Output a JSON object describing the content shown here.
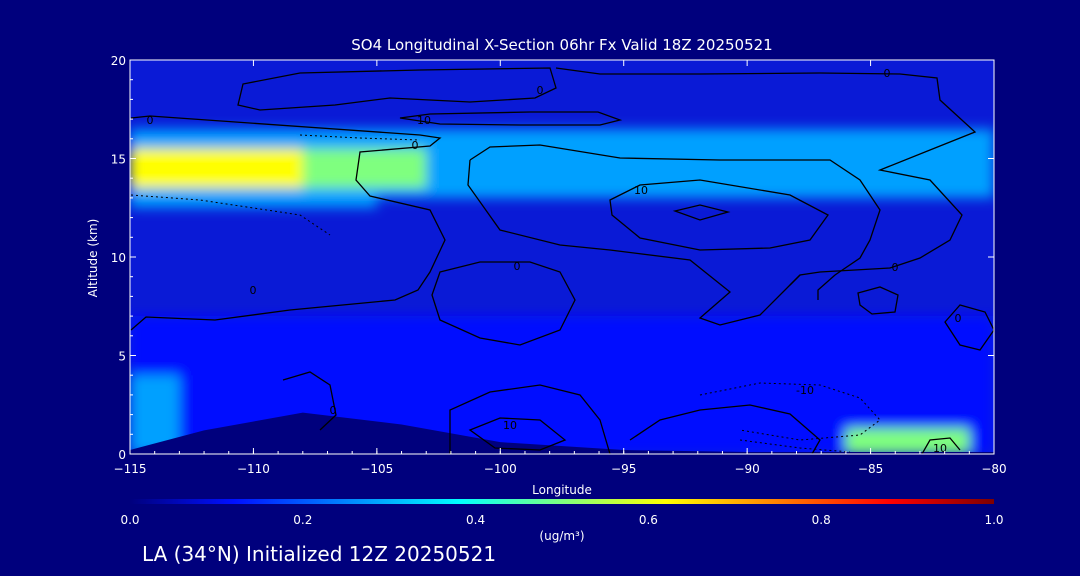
{
  "chart_data": {
    "type": "heatmap",
    "title": "SO4 Longitudinal X-Section 06hr  Fx Valid 18Z 20250521",
    "xlabel": "Longitude",
    "ylabel": "Altitude (km)",
    "xlim": [
      -115,
      -80
    ],
    "ylim": [
      0,
      20
    ],
    "x_ticks": [
      "-115",
      "-110",
      "-105",
      "-100",
      "-95",
      "-90",
      "-85",
      "-80"
    ],
    "y_ticks": [
      "0",
      "5",
      "10",
      "15",
      "20"
    ],
    "colorbar": {
      "label": "(ug/m³)",
      "range": [
        0.0,
        1.0
      ],
      "ticks": [
        "0.0",
        "0.2",
        "0.4",
        "0.6",
        "0.8",
        "1.0"
      ],
      "colors": [
        "#00007d",
        "#0010ff",
        "#00a0ff",
        "#00ffff",
        "#7fff7f",
        "#ffff00",
        "#ff8000",
        "#ff0000",
        "#7d0000"
      ]
    },
    "concentration_features": [
      {
        "lon_range": [
          -115,
          -80
        ],
        "alt_range": [
          13,
          16.5
        ],
        "value": 0.3
      },
      {
        "lon_range": [
          -115,
          -108
        ],
        "alt_range": [
          13.5,
          15.5
        ],
        "value": 0.62
      },
      {
        "lon_range": [
          -108,
          -103
        ],
        "alt_range": [
          13.5,
          15.5
        ],
        "value": 0.52
      },
      {
        "lon_range": [
          -115,
          -105
        ],
        "alt_range": [
          12.5,
          13.2
        ],
        "value": 0.3
      },
      {
        "lon_range": [
          -115,
          -80
        ],
        "alt_range": [
          0,
          7
        ],
        "value": 0.15
      },
      {
        "lon_range": [
          -86,
          -81
        ],
        "alt_range": [
          0,
          1.3
        ],
        "value": 0.45
      },
      {
        "lon_range": [
          -115,
          -113
        ],
        "alt_range": [
          0,
          4
        ],
        "value": 0.3
      }
    ],
    "contour_labels": [
      "0",
      "0",
      "0",
      "0",
      "10",
      "10",
      "0",
      "10",
      "0",
      "10",
      "-10",
      "0",
      "0",
      "0"
    ],
    "terrain_elevation_km": [
      {
        "lon": -115,
        "alt": 0.2
      },
      {
        "lon": -112,
        "alt": 1.2
      },
      {
        "lon": -108,
        "alt": 2.1
      },
      {
        "lon": -104,
        "alt": 1.5
      },
      {
        "lon": -100,
        "alt": 0.6
      },
      {
        "lon": -95,
        "alt": 0.2
      },
      {
        "lon": -90,
        "alt": 0.1
      },
      {
        "lon": -80,
        "alt": 0.1
      }
    ]
  },
  "footer": "LA (34°N) Initialized 12Z 20250521"
}
